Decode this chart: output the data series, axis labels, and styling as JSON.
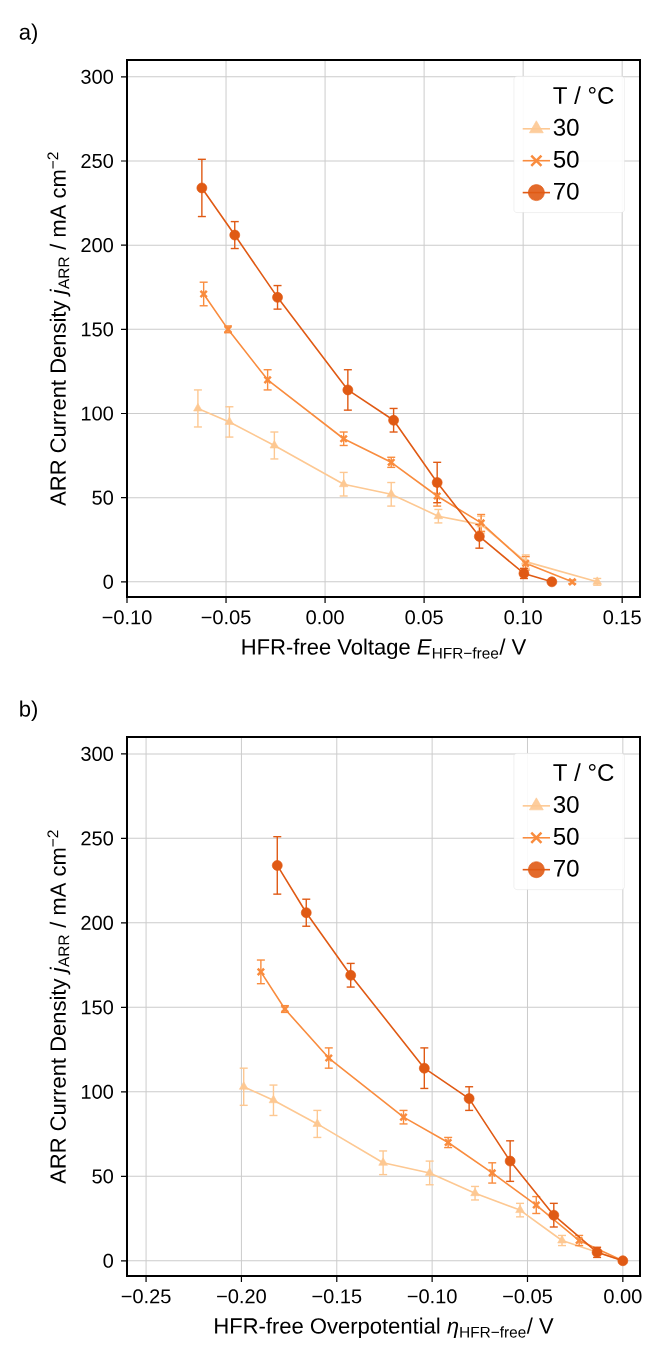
{
  "chart_data": [
    {
      "type": "line",
      "title": "a)",
      "xlabel": "HFR-free Voltage *E*$_{HFR−free}$/ V",
      "ylabel": "ARR Current Density *j*$_{ARR}$ / mA cm$^{−2}$",
      "xlim": [
        -0.1,
        0.159
      ],
      "ylim": [
        -9,
        310
      ],
      "xticks": [
        {
          "value": -0.1,
          "label": "−0.10"
        },
        {
          "value": -0.05,
          "label": "−0.05"
        },
        {
          "value": 0.0,
          "label": "0.00"
        },
        {
          "value": 0.05,
          "label": "0.05"
        },
        {
          "value": 0.1,
          "label": "0.10"
        },
        {
          "value": 0.15,
          "label": "0.15"
        }
      ],
      "yticks": [
        0,
        50,
        100,
        150,
        200,
        250,
        300
      ],
      "grid": true,
      "legend": "top right",
      "legend_title": "T / °C",
      "line_style": "solid",
      "series": [
        {
          "name": "30",
          "color": "#fdc892",
          "marker": "triangle",
          "x": [
            -0.0642,
            -0.0483,
            -0.0256,
            0.0094,
            0.0334,
            0.0572,
            0.0788,
            0.1013,
            0.1374
          ],
          "values": [
            103,
            95,
            81,
            58,
            52,
            39,
            34,
            12,
            0
          ],
          "errors": [
            11,
            9,
            8,
            7,
            7,
            4,
            5,
            4,
            2
          ]
        },
        {
          "name": "50",
          "color": "#f98c3e",
          "marker": "cross",
          "x": [
            -0.0613,
            -0.049,
            -0.029,
            0.0094,
            0.0334,
            0.0566,
            0.0788,
            0.1013,
            0.1248
          ],
          "values": [
            171,
            150,
            120,
            85,
            71,
            51,
            35,
            11,
            0
          ],
          "errors": [
            7,
            2,
            6,
            4,
            3,
            6,
            5,
            4,
            1
          ]
        },
        {
          "name": "70",
          "color": "#e05a14",
          "marker": "circle",
          "x": [
            -0.0622,
            -0.0456,
            -0.024,
            0.0115,
            0.0346,
            0.0566,
            0.0779,
            0.1004,
            0.1145
          ],
          "values": [
            234,
            206,
            169,
            114,
            96,
            59,
            27,
            5,
            0
          ],
          "errors": [
            17,
            8,
            7,
            12,
            7,
            12,
            7,
            3,
            1
          ]
        }
      ]
    },
    {
      "type": "line",
      "title": "b)",
      "xlabel": "HFR-free Overpotential *η*$_{HFR−free}$/ V",
      "ylabel": "ARR Current Density *j*$_{ARR}$ / mA cm$^{−2}$",
      "xlim": [
        -0.26,
        0.009
      ],
      "ylim": [
        -9,
        310
      ],
      "xticks": [
        {
          "value": -0.25,
          "label": "−0.25"
        },
        {
          "value": -0.2,
          "label": "−0.20"
        },
        {
          "value": -0.15,
          "label": "−0.15"
        },
        {
          "value": -0.1,
          "label": "−0.10"
        },
        {
          "value": -0.05,
          "label": "−0.05"
        },
        {
          "value": 0.0,
          "label": "0.00"
        }
      ],
      "yticks": [
        0,
        50,
        100,
        150,
        200,
        250,
        300
      ],
      "grid": true,
      "legend": "top right",
      "legend_title": "T / °C",
      "line_style": "solid",
      "series": [
        {
          "name": "30",
          "color": "#fdc892",
          "marker": "triangle",
          "x": [
            -0.1988,
            -0.1832,
            -0.1602,
            -0.1257,
            -0.1013,
            -0.0775,
            -0.0539,
            -0.0319,
            0.0
          ],
          "values": [
            103,
            95,
            81,
            58,
            52,
            40,
            30,
            12,
            0
          ],
          "errors": [
            11,
            9,
            8,
            7,
            7,
            4,
            4,
            3,
            1
          ]
        },
        {
          "name": "50",
          "color": "#f98c3e",
          "marker": "cross",
          "x": [
            -0.1898,
            -0.1772,
            -0.1542,
            -0.115,
            -0.0916,
            -0.0685,
            -0.0454,
            -0.0229,
            0.0
          ],
          "values": [
            171,
            149,
            120,
            85,
            70,
            52,
            33,
            12,
            0
          ],
          "errors": [
            7,
            2,
            6,
            4,
            3,
            6,
            5,
            3,
            1
          ]
        },
        {
          "name": "70",
          "color": "#e05a14",
          "marker": "circle",
          "x": [
            -0.1812,
            -0.166,
            -0.1427,
            -0.1041,
            -0.0806,
            -0.0591,
            -0.0362,
            -0.0135,
            0.0
          ],
          "values": [
            234,
            206,
            169,
            114,
            96,
            59,
            27,
            5,
            0
          ],
          "errors": [
            17,
            8,
            7,
            12,
            7,
            12,
            7,
            3,
            1
          ]
        }
      ]
    }
  ]
}
